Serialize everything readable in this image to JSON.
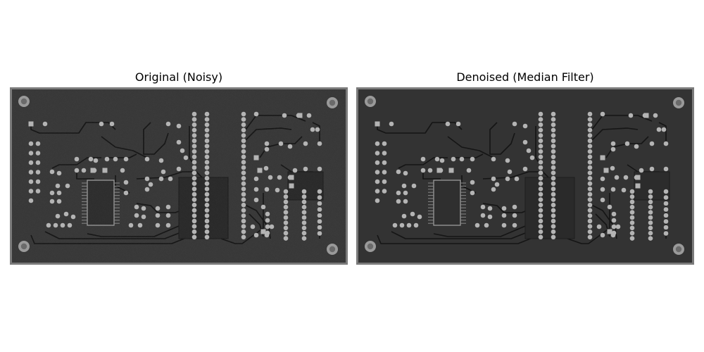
{
  "panels": [
    {
      "title": "Original (Noisy)"
    },
    {
      "title": "Denoised (Median Filter)"
    }
  ],
  "colors": {
    "background": "#ffffff",
    "board_frame": "#7b7b7b",
    "board_noisy": "#383838",
    "board_denoised": "#333333",
    "trace": "#151515",
    "pad": "#b4b4b4"
  }
}
